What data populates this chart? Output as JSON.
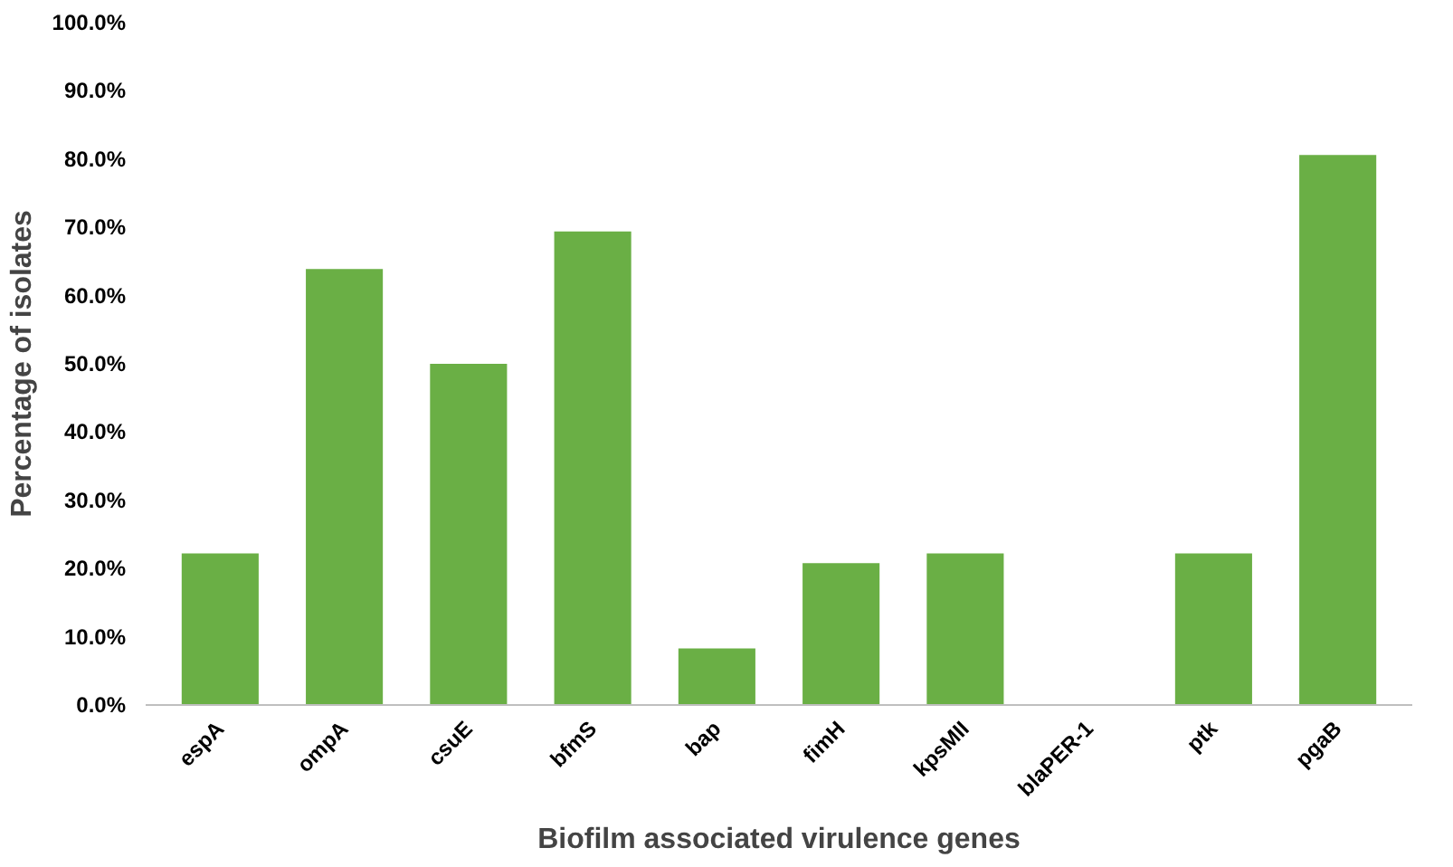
{
  "chart_data": {
    "type": "bar",
    "xlabel": "Biofilm associated virulence genes",
    "ylabel": "Percentage of isolates",
    "categories": [
      "espA",
      "ompA",
      "csuE",
      "bfmS",
      "bap",
      "fimH",
      "kpsMII",
      "blaPER-1",
      "ptk",
      "pgaB"
    ],
    "values": [
      22.2,
      63.9,
      50.0,
      69.4,
      8.3,
      20.8,
      22.2,
      0,
      22.2,
      80.6
    ],
    "color": "#6aaf45",
    "ylim": [
      0,
      100
    ],
    "yticks": [
      {
        "value": 0,
        "label": "0.0%"
      },
      {
        "value": 10,
        "label": "10.0%"
      },
      {
        "value": 20,
        "label": "20.0%"
      },
      {
        "value": 30,
        "label": "30.0%"
      },
      {
        "value": 40,
        "label": "40.0%"
      },
      {
        "value": 50,
        "label": "50.0%"
      },
      {
        "value": 60,
        "label": "60.0%"
      },
      {
        "value": 70,
        "label": "70.0%"
      },
      {
        "value": 80,
        "label": "80.0%"
      },
      {
        "value": 90,
        "label": "90.0%"
      },
      {
        "value": 100,
        "label": "100.0%"
      }
    ],
    "grid": false
  }
}
